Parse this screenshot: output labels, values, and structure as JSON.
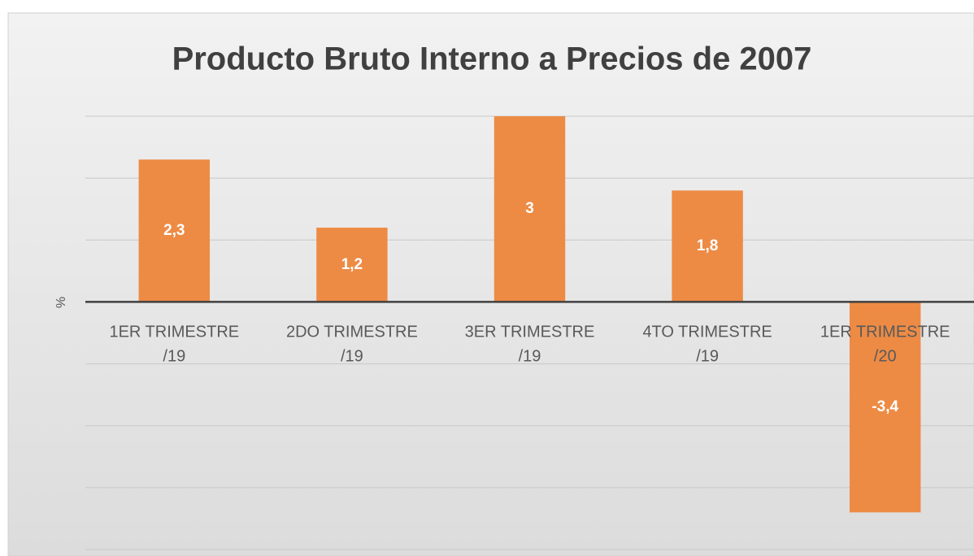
{
  "chart_data": {
    "type": "bar",
    "title": "Producto Bruto Interno a Precios de 2007",
    "ylabel": "%",
    "categories": [
      "1ER TRIMESTRE\n/19",
      "2DO TRIMESTRE\n/19",
      "3ER TRIMESTRE\n/19",
      "4TO TRIMESTRE\n/19",
      "1ER TRIMESTRE\n/20"
    ],
    "values": [
      2.3,
      1.2,
      3,
      1.8,
      -3.4
    ],
    "value_labels": [
      "2,3",
      "1,2",
      "3",
      "1,8",
      "-3,4"
    ],
    "color": "#ed8b45",
    "ylim": [
      -4,
      3
    ],
    "yticks": [
      -4,
      -3,
      -2,
      -1,
      0,
      1,
      2,
      3
    ],
    "tick_labels": false,
    "grid": true
  }
}
